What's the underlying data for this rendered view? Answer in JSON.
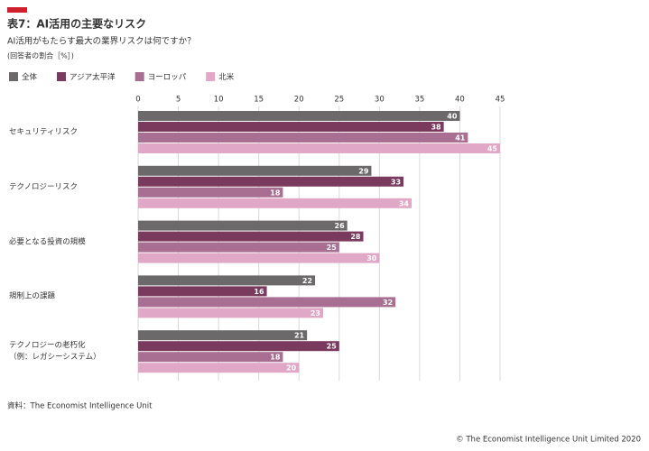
{
  "chart_data": {
    "type": "bar",
    "orientation": "horizontal",
    "title": "表7：AI活用の主要なリスク",
    "subtitle": "AI活用がもたらす最大の業界リスクは何ですか？",
    "note": "(回答者の割合［%］)",
    "source": "資料：The Economist Intelligence Unit",
    "copyright": "© The Economist Intelligence Unit Limited 2020",
    "categories": [
      "セキュリティリスク",
      "テクノロジーリスク",
      "必要となる投資の規模",
      "規制上の課題",
      "テクノロジーの老朽化\n（例：レガシーシステム）"
    ],
    "series": [
      {
        "name": "全体",
        "color": "#6b696a",
        "values": [
          40,
          29,
          26,
          22,
          21
        ]
      },
      {
        "name": "アジア太平洋",
        "color": "#7a3a5e",
        "values": [
          38,
          33,
          28,
          16,
          25
        ]
      },
      {
        "name": "ヨーロッパ",
        "color": "#a86f92",
        "values": [
          41,
          18,
          25,
          32,
          18
        ]
      },
      {
        "name": "北米",
        "color": "#e0a7c7",
        "values": [
          45,
          34,
          30,
          23,
          20
        ]
      }
    ],
    "xlim": [
      0,
      45
    ],
    "xticks": [
      0,
      5,
      10,
      15,
      20,
      25,
      30,
      35,
      40,
      45
    ],
    "grid": true
  }
}
